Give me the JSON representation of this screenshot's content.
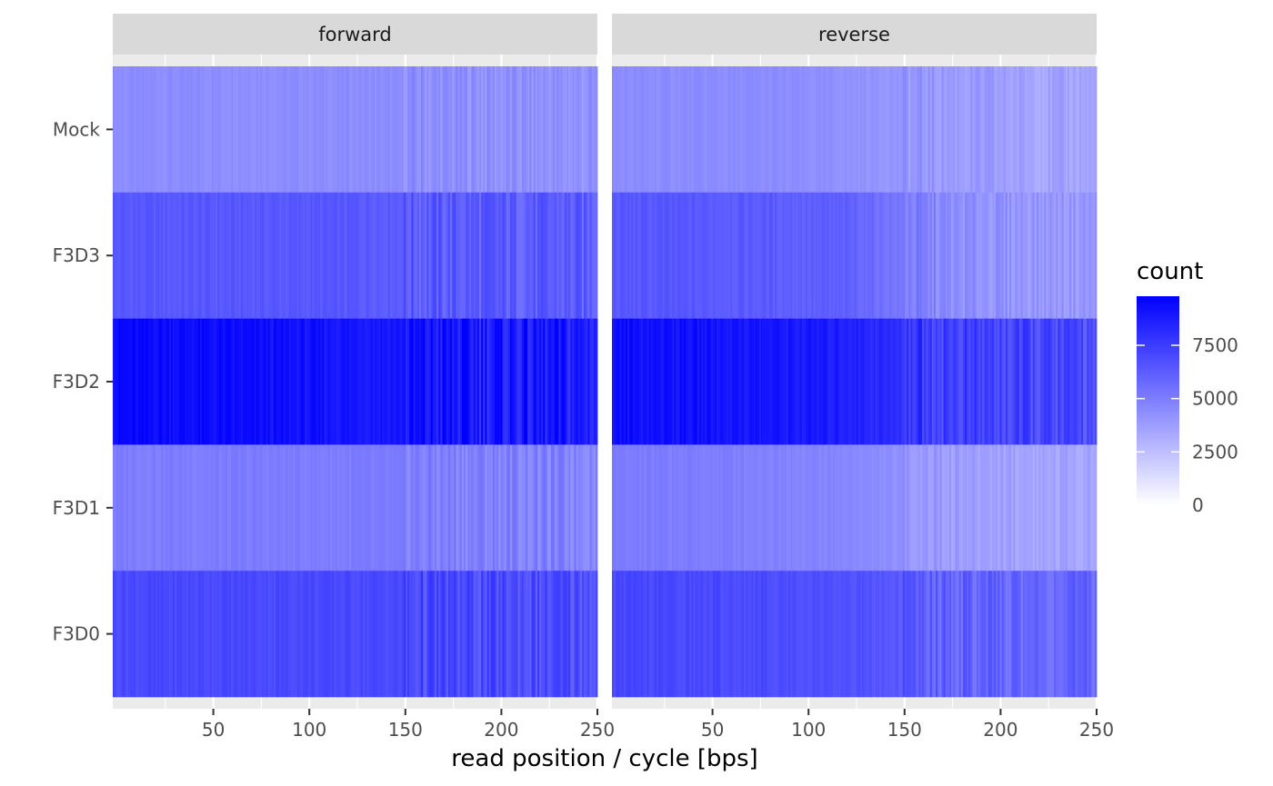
{
  "chart_data": {
    "type": "heatmap",
    "title": "",
    "xlabel": "read position / cycle [bps]",
    "ylabel": "",
    "xlim": [
      0,
      250
    ],
    "x_ticks": [
      50,
      100,
      150,
      200,
      250
    ],
    "facets": [
      "forward",
      "reverse"
    ],
    "samples": [
      "Mock",
      "F3D3",
      "F3D2",
      "F3D1",
      "F3D0"
    ],
    "legend": {
      "title": "count",
      "position": "right",
      "low_color": "#ffffff",
      "high_color": "#0000ff",
      "breaks": [
        0,
        2500,
        5000,
        7500
      ],
      "limits": [
        0,
        9800
      ]
    },
    "grid": true,
    "approx_counts": {
      "forward": {
        "Mock": [
          4400,
          4400,
          4400,
          4300,
          4200
        ],
        "F3D3": [
          6400,
          6400,
          6400,
          6300,
          6200
        ],
        "F3D2": [
          9400,
          9200,
          9000,
          8900,
          8700
        ],
        "F3D1": [
          5000,
          5000,
          5000,
          4900,
          4800
        ],
        "F3D0": [
          7000,
          7000,
          7000,
          6900,
          6800
        ]
      },
      "reverse": {
        "Mock": [
          4400,
          4400,
          4200,
          3900,
          3500
        ],
        "F3D3": [
          6400,
          6300,
          6000,
          4300,
          4000
        ],
        "F3D2": [
          9200,
          9000,
          8600,
          7300,
          7000
        ],
        "F3D1": [
          5000,
          4900,
          4600,
          3800,
          3500
        ],
        "F3D0": [
          7000,
          6900,
          6700,
          6000,
          5800
        ]
      },
      "bin_edges": [
        0,
        50,
        100,
        150,
        200,
        250
      ]
    }
  }
}
